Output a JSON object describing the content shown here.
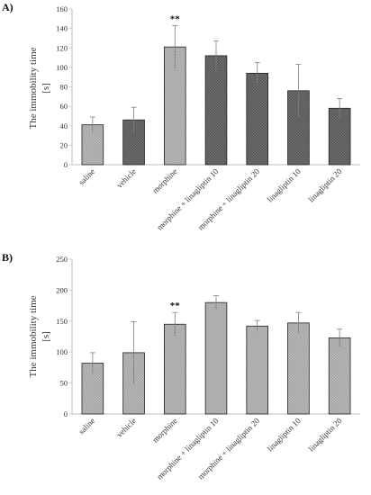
{
  "colors": {
    "axis": "#bfbfbf",
    "bar_dark": "#595959",
    "bar_light": "#a6a6a6",
    "error": "#7f7f7f"
  },
  "chart_data": [
    {
      "panel": "A)",
      "type": "bar",
      "ylabel_line1": "The immobility time",
      "ylabel_line2": "[s]",
      "ylim": [
        0,
        160
      ],
      "yticks": [
        0,
        20,
        40,
        60,
        80,
        100,
        120,
        140,
        160
      ],
      "grid": false,
      "categories": [
        "saline",
        "vehicle",
        "morphine",
        "morphine + linagliptin 10",
        "morphine + linagliptin 20",
        "linagliptin 10",
        "linagliptin 20"
      ],
      "values": [
        41,
        46,
        121,
        112,
        94,
        76,
        58
      ],
      "errors": [
        8,
        13,
        22,
        15,
        11,
        27,
        10
      ],
      "bar_colors": [
        "#a6a6a6",
        "#595959",
        "#a6a6a6",
        "#595959",
        "#595959",
        "#595959",
        "#595959"
      ],
      "annotations": [
        {
          "category": "morphine",
          "text": "**"
        }
      ]
    },
    {
      "panel": "B)",
      "type": "bar",
      "ylabel_line1": "The immobility time",
      "ylabel_line2": "[s]",
      "ylim": [
        0,
        250
      ],
      "yticks": [
        0,
        50,
        100,
        150,
        200,
        250
      ],
      "grid": false,
      "categories": [
        "saline",
        "vehicle",
        "morphine",
        "morphine + linagliptin 10",
        "morphine + linagliptin 20",
        "linagliptin 10",
        "linagliptin 20"
      ],
      "values": [
        82,
        99,
        145,
        180,
        142,
        147,
        123
      ],
      "errors": [
        17,
        50,
        19,
        11,
        9,
        17,
        14
      ],
      "bar_colors": [
        "#a6a6a6",
        "#a6a6a6",
        "#a6a6a6",
        "#a6a6a6",
        "#a6a6a6",
        "#a6a6a6",
        "#a6a6a6"
      ],
      "annotations": [
        {
          "category": "morphine",
          "text": "**"
        }
      ]
    }
  ]
}
